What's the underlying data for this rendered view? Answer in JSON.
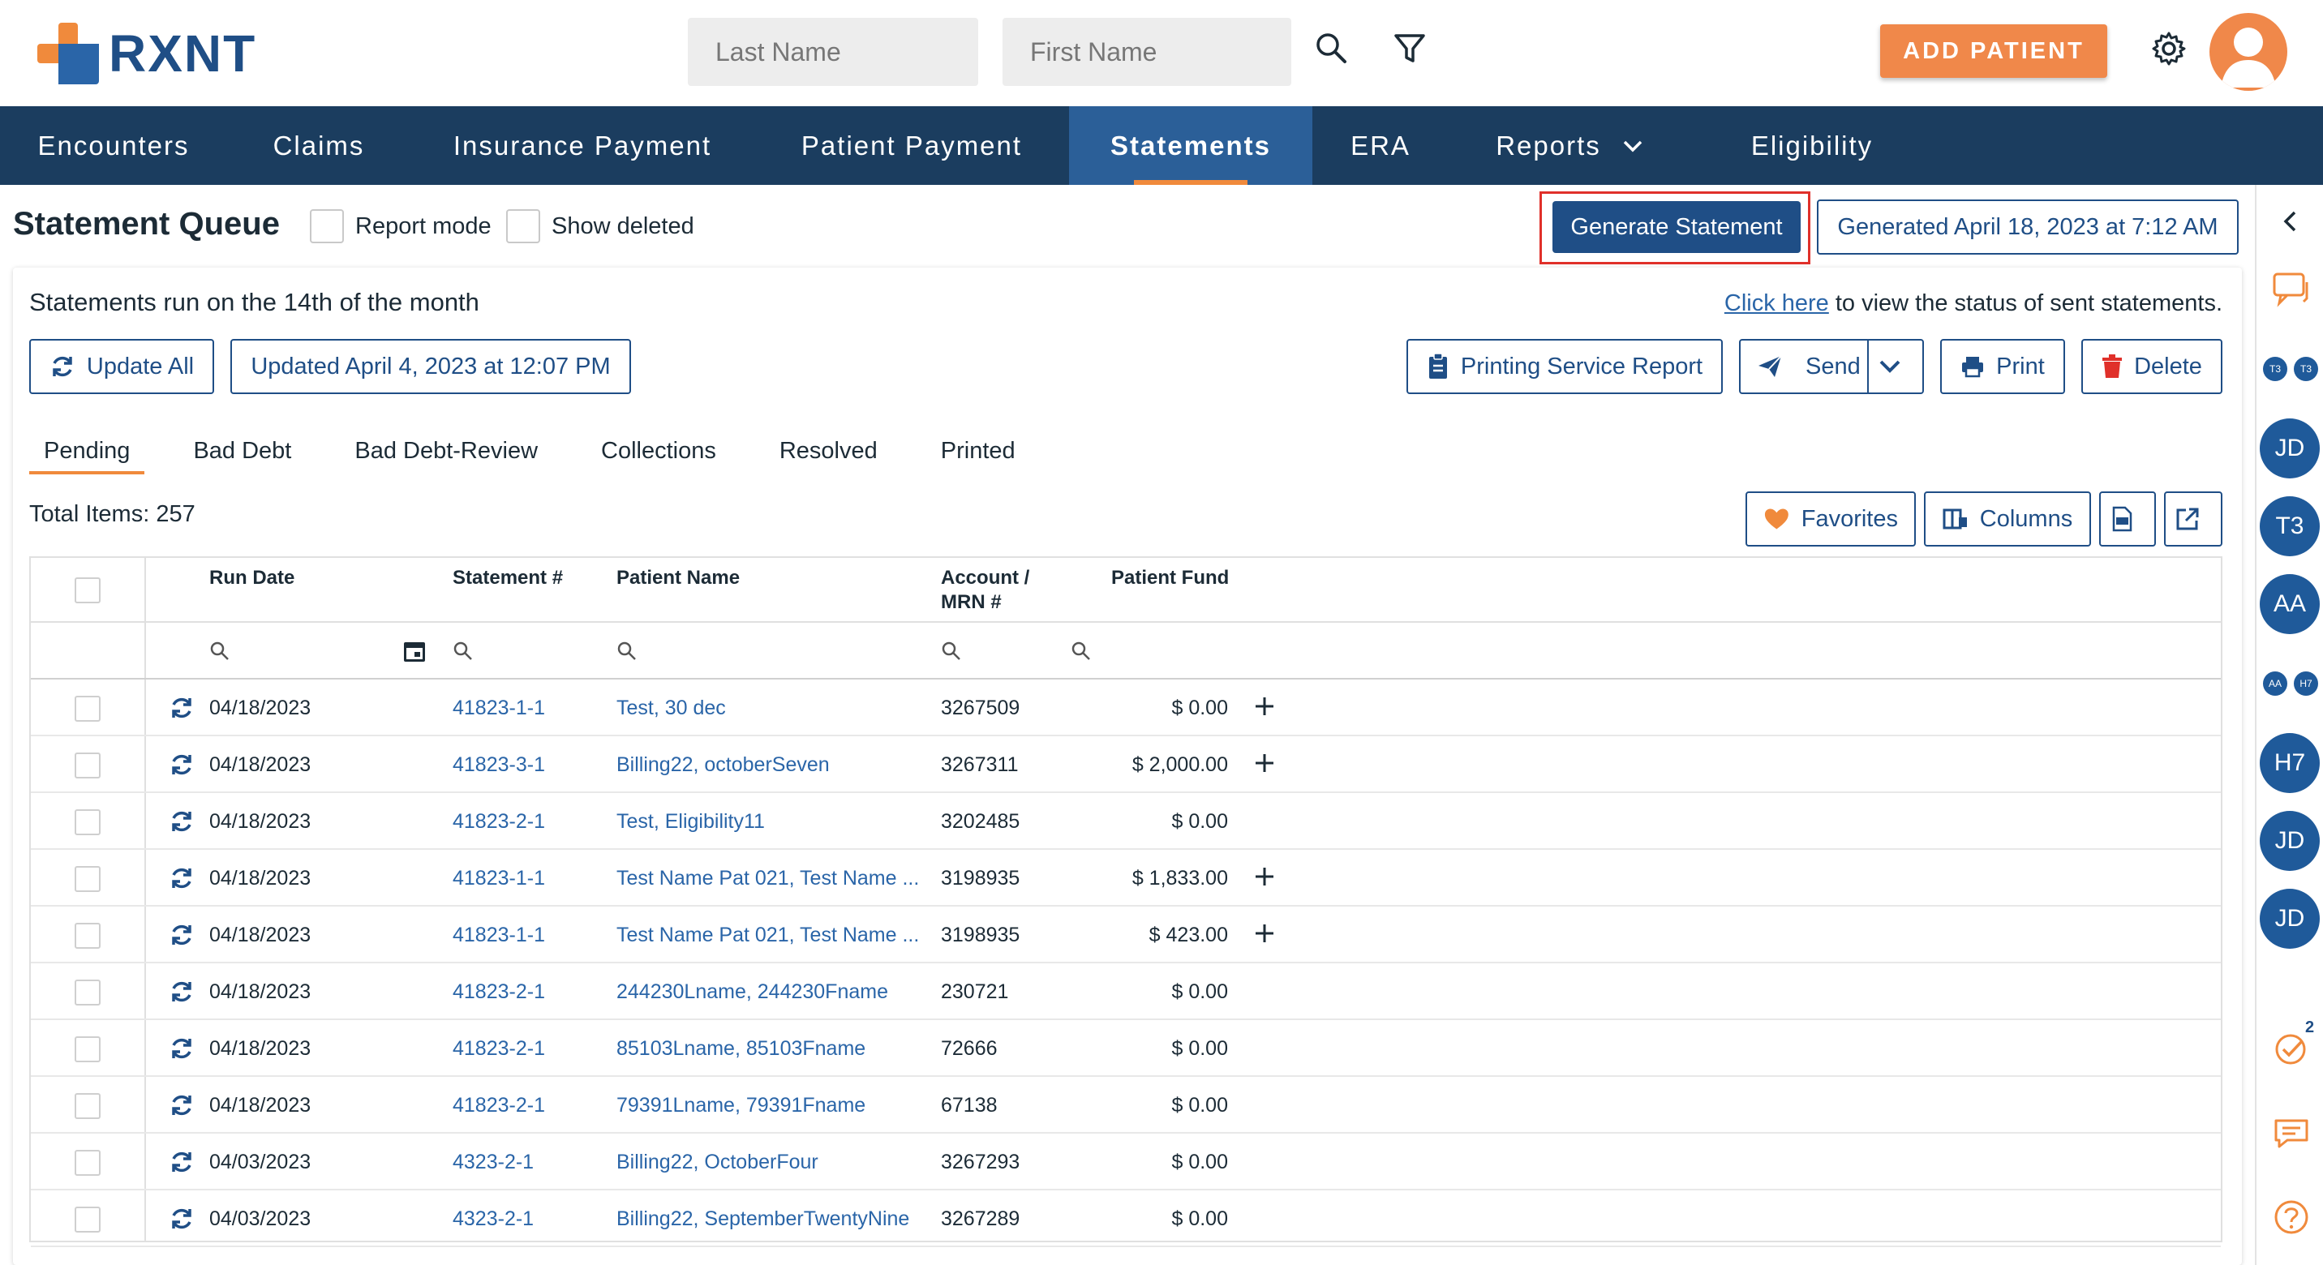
{
  "header": {
    "logo_text": "RXNT",
    "last_name_placeholder": "Last Name",
    "first_name_placeholder": "First Name",
    "add_patient_label": "ADD PATIENT",
    "icons": [
      "search-icon",
      "filter-icon",
      "gear-icon",
      "avatar"
    ]
  },
  "nav": {
    "items": [
      {
        "label": "Encounters"
      },
      {
        "label": "Claims"
      },
      {
        "label": "Insurance Payment"
      },
      {
        "label": "Patient Payment"
      },
      {
        "label": "Statements"
      },
      {
        "label": "ERA"
      },
      {
        "label": "Reports"
      },
      {
        "label": "Eligibility"
      }
    ],
    "active": "Statements"
  },
  "page": {
    "title": "Statement Queue",
    "report_mode_label": "Report mode",
    "show_deleted_label": "Show deleted",
    "generate_statement_label": "Generate Statement",
    "generated_label": "Generated April 18, 2023 at 7:12 AM",
    "info_text": "Statements run on the 14th of the month",
    "status_link_text": "Click here",
    "status_suffix": " to view the status of sent statements.",
    "update_all_label": "Update All",
    "updated_label": "Updated April 4, 2023 at 12:07 PM",
    "printing_service_label": "Printing Service Report",
    "send_label": "Send",
    "print_label": "Print",
    "delete_label": "Delete",
    "favorites_label": "Favorites",
    "columns_label": "Columns",
    "total_items": "Total Items: 257"
  },
  "tabs": [
    {
      "label": "Pending"
    },
    {
      "label": "Bad Debt"
    },
    {
      "label": "Bad Debt-Review"
    },
    {
      "label": "Collections"
    },
    {
      "label": "Resolved"
    },
    {
      "label": "Printed"
    }
  ],
  "table": {
    "headers": {
      "run_date": "Run Date",
      "statement": "Statement #",
      "patient_name": "Patient Name",
      "account_line1": "Account /",
      "account_line2": "MRN #",
      "patient_fund": "Patient Fund"
    },
    "rows": [
      {
        "run_date": "04/18/2023",
        "statement": "41823-1-1",
        "patient": "Test, 30 dec",
        "account": "3267509",
        "fund": "$ 0.00",
        "plus": true
      },
      {
        "run_date": "04/18/2023",
        "statement": "41823-3-1",
        "patient": "Billing22, octoberSeven",
        "account": "3267311",
        "fund": "$ 2,000.00",
        "plus": true
      },
      {
        "run_date": "04/18/2023",
        "statement": "41823-2-1",
        "patient": "Test, Eligibility11",
        "account": "3202485",
        "fund": "$ 0.00",
        "plus": false
      },
      {
        "run_date": "04/18/2023",
        "statement": "41823-1-1",
        "patient": "Test Name Pat 021, Test Name ...",
        "account": "3198935",
        "fund": "$ 1,833.00",
        "plus": true
      },
      {
        "run_date": "04/18/2023",
        "statement": "41823-1-1",
        "patient": "Test Name Pat 021, Test Name ...",
        "account": "3198935",
        "fund": "$ 423.00",
        "plus": true
      },
      {
        "run_date": "04/18/2023",
        "statement": "41823-2-1",
        "patient": "244230Lname, 244230Fname",
        "account": "230721",
        "fund": "$ 0.00",
        "plus": false
      },
      {
        "run_date": "04/18/2023",
        "statement": "41823-2-1",
        "patient": "85103Lname, 85103Fname",
        "account": "72666",
        "fund": "$ 0.00",
        "plus": false
      },
      {
        "run_date": "04/18/2023",
        "statement": "41823-2-1",
        "patient": "79391Lname, 79391Fname",
        "account": "67138",
        "fund": "$ 0.00",
        "plus": false
      },
      {
        "run_date": "04/03/2023",
        "statement": "4323-2-1",
        "patient": "Billing22, OctoberFour",
        "account": "3267293",
        "fund": "$ 0.00",
        "plus": false
      },
      {
        "run_date": "04/03/2023",
        "statement": "4323-2-1",
        "patient": "Billing22, SeptemberTwentyNine",
        "account": "3267289",
        "fund": "$ 0.00",
        "plus": false
      }
    ]
  },
  "right_rail": {
    "avatars": [
      "JD",
      "T3",
      "AA",
      "H7",
      "JD",
      "JD"
    ],
    "small_avatars_top": [
      "T3",
      "T3"
    ],
    "small_avatars_mid": [
      "AA",
      "H7"
    ],
    "task_badge": "2"
  },
  "colors": {
    "nav_bg": "#1b3d5f",
    "nav_active": "#2b5f98",
    "accent_orange": "#f08a3c",
    "primary_blue": "#1f4e86",
    "link_blue": "#2a65a8"
  }
}
